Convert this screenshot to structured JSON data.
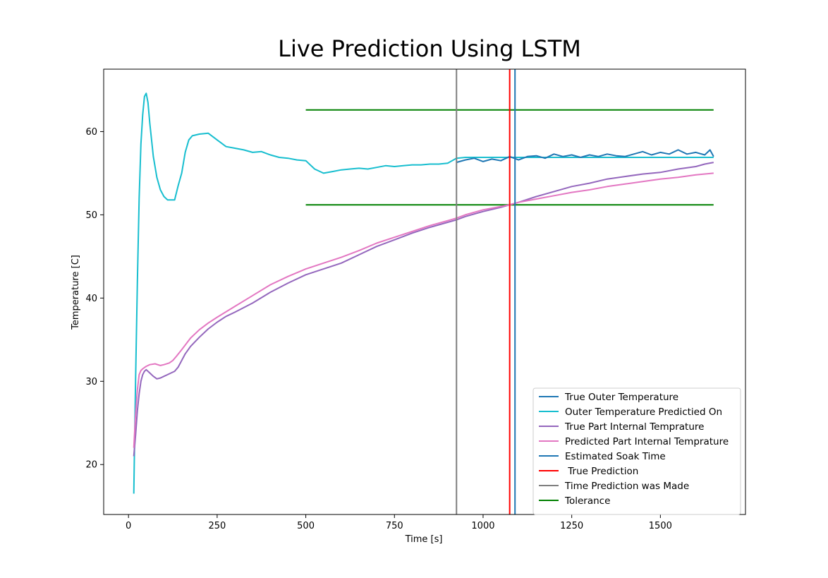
{
  "chart_data": {
    "type": "line",
    "title": "Live Prediction Using LSTM",
    "xlabel": "Time [s]",
    "ylabel": "Temperature [C]",
    "xlim": [
      -70,
      1740
    ],
    "ylim": [
      14,
      67.5
    ],
    "xticks": [
      0,
      250,
      500,
      750,
      1000,
      1250,
      1500
    ],
    "yticks": [
      20,
      30,
      40,
      50,
      60
    ],
    "grid": false,
    "legend_position": "lower right",
    "colors": {
      "true_outer": "#1f77b4",
      "outer_predicted_on": "#17becf",
      "true_internal": "#9467bd",
      "predicted_internal": "#e377c2",
      "soak_time": "#1f77b4",
      "true_prediction": "#ff0000",
      "prediction_made": "#7f7f7f",
      "tolerance": "#008000"
    },
    "series": [
      {
        "name": "True Outer Temperature",
        "color": "#1f77b4",
        "x": [
          925,
          950,
          975,
          1000,
          1025,
          1050,
          1075,
          1100,
          1125,
          1150,
          1175,
          1200,
          1225,
          1250,
          1275,
          1300,
          1325,
          1350,
          1375,
          1400,
          1425,
          1450,
          1475,
          1500,
          1525,
          1550,
          1575,
          1600,
          1625,
          1640,
          1650
        ],
        "y": [
          56.3,
          56.6,
          56.8,
          56.4,
          56.7,
          56.5,
          57.0,
          56.6,
          57.0,
          57.1,
          56.8,
          57.3,
          57.0,
          57.2,
          56.9,
          57.2,
          57.0,
          57.3,
          57.1,
          57.0,
          57.3,
          57.6,
          57.2,
          57.5,
          57.3,
          57.8,
          57.3,
          57.5,
          57.2,
          57.8,
          57.0
        ]
      },
      {
        "name": "Outer Temperature Predictied On",
        "color": "#17becf",
        "x": [
          15,
          20,
          25,
          30,
          35,
          40,
          45,
          50,
          55,
          60,
          70,
          80,
          90,
          100,
          110,
          120,
          130,
          140,
          150,
          160,
          170,
          180,
          200,
          225,
          250,
          275,
          300,
          325,
          350,
          375,
          400,
          425,
          450,
          475,
          500,
          525,
          550,
          575,
          600,
          625,
          650,
          675,
          700,
          725,
          750,
          775,
          800,
          825,
          850,
          875,
          900,
          925,
          950,
          1000,
          1050,
          1100,
          1150,
          1200,
          1250,
          1300,
          1350,
          1400,
          1450,
          1500,
          1550,
          1600,
          1650
        ],
        "y": [
          16.5,
          30.0,
          42.0,
          52.0,
          58.5,
          62.0,
          64.2,
          64.6,
          63.5,
          61.0,
          57.0,
          54.5,
          53.0,
          52.2,
          51.8,
          51.8,
          51.8,
          53.5,
          55.0,
          57.5,
          59.0,
          59.5,
          59.7,
          59.8,
          59.0,
          58.2,
          58.0,
          57.8,
          57.5,
          57.6,
          57.2,
          56.9,
          56.8,
          56.6,
          56.5,
          55.5,
          55.0,
          55.2,
          55.4,
          55.5,
          55.6,
          55.5,
          55.7,
          55.9,
          55.8,
          55.9,
          56.0,
          56.0,
          56.1,
          56.1,
          56.2,
          56.8,
          56.9,
          56.9,
          56.9,
          56.9,
          56.9,
          56.9,
          56.9,
          56.9,
          56.9,
          56.9,
          56.9,
          56.9,
          56.9,
          56.9,
          56.9
        ]
      },
      {
        "name": "True Part Internal Temprature",
        "color": "#9467bd",
        "x": [
          15,
          20,
          25,
          30,
          35,
          40,
          45,
          50,
          60,
          70,
          80,
          90,
          100,
          110,
          120,
          130,
          140,
          150,
          160,
          175,
          200,
          225,
          250,
          275,
          300,
          350,
          400,
          450,
          500,
          550,
          600,
          650,
          700,
          750,
          800,
          850,
          900,
          925,
          950,
          1000,
          1050,
          1075,
          1100,
          1150,
          1200,
          1250,
          1300,
          1350,
          1400,
          1450,
          1500,
          1550,
          1600,
          1625,
          1650
        ],
        "y": [
          21.0,
          23.5,
          26.5,
          28.5,
          30.0,
          30.8,
          31.2,
          31.4,
          31.0,
          30.6,
          30.3,
          30.4,
          30.6,
          30.8,
          31.0,
          31.2,
          31.7,
          32.5,
          33.3,
          34.2,
          35.3,
          36.3,
          37.1,
          37.8,
          38.3,
          39.4,
          40.7,
          41.8,
          42.8,
          43.5,
          44.2,
          45.2,
          46.2,
          47.0,
          47.8,
          48.5,
          49.1,
          49.4,
          49.8,
          50.4,
          50.9,
          51.2,
          51.5,
          52.2,
          52.8,
          53.4,
          53.8,
          54.3,
          54.6,
          54.9,
          55.1,
          55.5,
          55.8,
          56.1,
          56.3
        ]
      },
      {
        "name": "Predicted Part Internal Temprature",
        "color": "#e377c2",
        "x": [
          15,
          20,
          25,
          30,
          35,
          40,
          50,
          60,
          75,
          90,
          100,
          115,
          125,
          135,
          150,
          175,
          200,
          225,
          250,
          300,
          350,
          400,
          450,
          500,
          550,
          600,
          650,
          700,
          750,
          800,
          850,
          900,
          925,
          950,
          1000,
          1050,
          1075,
          1100,
          1150,
          1200,
          1250,
          1300,
          1350,
          1400,
          1450,
          1500,
          1550,
          1600,
          1650
        ],
        "y": [
          22.0,
          26.0,
          29.0,
          30.8,
          31.3,
          31.5,
          31.8,
          32.0,
          32.1,
          31.9,
          32.0,
          32.2,
          32.5,
          33.0,
          33.8,
          35.2,
          36.2,
          37.0,
          37.7,
          39.0,
          40.3,
          41.6,
          42.6,
          43.5,
          44.2,
          44.9,
          45.7,
          46.6,
          47.3,
          48.0,
          48.7,
          49.3,
          49.6,
          50.0,
          50.6,
          51.0,
          51.2,
          51.5,
          51.9,
          52.3,
          52.7,
          53.0,
          53.4,
          53.7,
          54.0,
          54.3,
          54.5,
          54.8,
          55.0
        ]
      }
    ],
    "vertical_lines": [
      {
        "name": "Estimated Soak Time",
        "x": 1090,
        "color": "#1f77b4"
      },
      {
        "name": " True Prediction",
        "x": 1075,
        "color": "#ff0000"
      },
      {
        "name": "Time Prediction was Made",
        "x": 925,
        "color": "#7f7f7f"
      }
    ],
    "tolerance": {
      "name": "Tolerance",
      "color": "#008000",
      "x_range": [
        500,
        1650
      ],
      "y_values": [
        51.2,
        62.6
      ]
    },
    "legend": [
      {
        "label": "True Outer Temperature",
        "color": "#1f77b4"
      },
      {
        "label": "Outer Temperature Predictied On",
        "color": "#17becf"
      },
      {
        "label": "True Part Internal Temprature",
        "color": "#9467bd"
      },
      {
        "label": "Predicted Part Internal Temprature",
        "color": "#e377c2"
      },
      {
        "label": "Estimated Soak Time",
        "color": "#1f77b4"
      },
      {
        "label": " True Prediction",
        "color": "#ff0000"
      },
      {
        "label": "Time Prediction was Made",
        "color": "#7f7f7f"
      },
      {
        "label": "Tolerance",
        "color": "#008000"
      }
    ]
  }
}
